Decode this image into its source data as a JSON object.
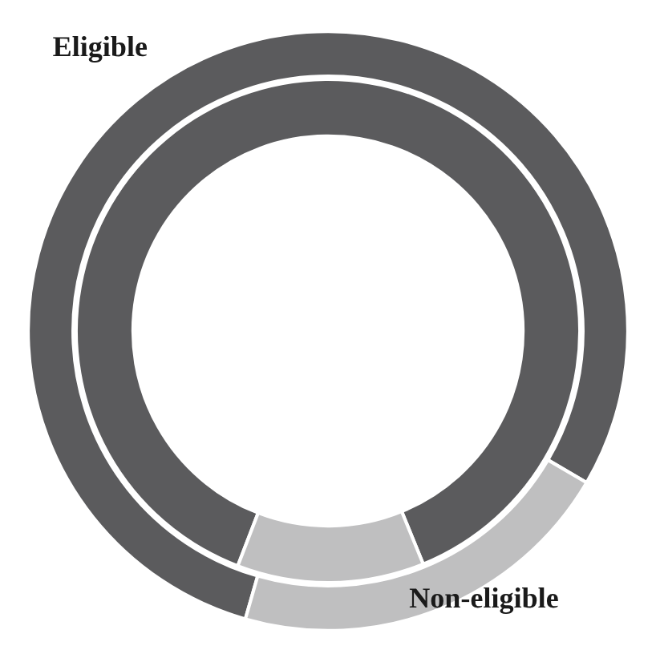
{
  "chart_data": {
    "type": "donut",
    "categories": [
      "Eligible",
      "Non-eligible"
    ],
    "series": [
      {
        "values": [
          79,
          21
        ],
        "colors": [
          "#5b5b5d",
          "#bfbfc0"
        ]
      },
      {
        "values": [
          88,
          12
        ],
        "colors": [
          "#5b5b5d",
          "#bfbfc0"
        ]
      }
    ],
    "legend": false
  }
}
